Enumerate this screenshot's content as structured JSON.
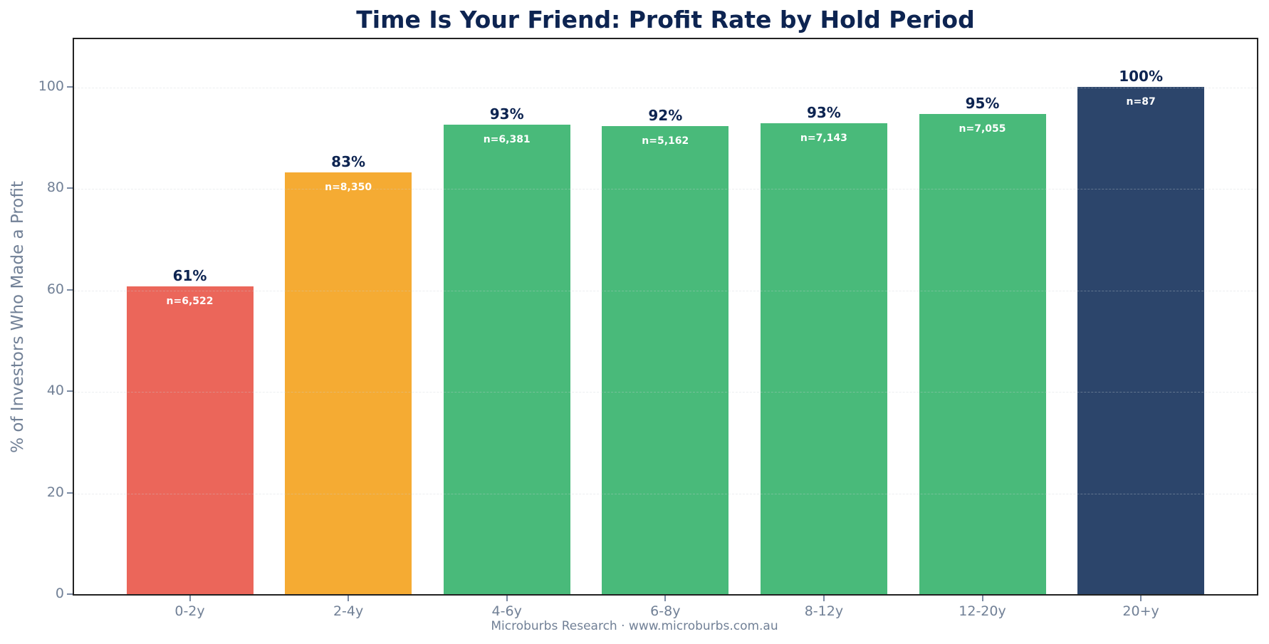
{
  "title": "Time Is Your Friend: Profit Rate by Hold Period",
  "footer": "Microburbs Research · www.microburbs.com.au",
  "colors": {
    "title": "#0d2451",
    "short_hold": "#eb665a",
    "medium_hold": "#f5ab33",
    "long_hold": "#49ba7a",
    "longest_hold": "#2c456b",
    "axis_text": "#718096"
  },
  "chart_data": {
    "type": "bar",
    "title": "Time Is Your Friend: Profit Rate by Hold Period",
    "xlabel": "",
    "ylabel": "% of Investors Who Made a Profit",
    "ylim": [
      0,
      110
    ],
    "yticks": [
      0,
      20,
      40,
      60,
      80,
      100
    ],
    "grid": true,
    "legend": null,
    "categories": [
      "0-2y",
      "2-4y",
      "4-6y",
      "6-8y",
      "8-12y",
      "12-20y",
      "20+y"
    ],
    "values": [
      60.7,
      83.1,
      92.6,
      92.3,
      92.8,
      94.7,
      100.0
    ],
    "value_labels": [
      "61%",
      "83%",
      "93%",
      "92%",
      "93%",
      "95%",
      "100%"
    ],
    "sample_sizes": [
      "n=6,522",
      "n=8,350",
      "n=6,381",
      "n=5,162",
      "n=7,143",
      "n=7,055",
      "n=87"
    ],
    "bar_colors": [
      "#eb665a",
      "#f5ab33",
      "#49ba7a",
      "#49ba7a",
      "#49ba7a",
      "#49ba7a",
      "#2c456b"
    ],
    "source": "Microburbs Research · www.microburbs.com.au"
  }
}
